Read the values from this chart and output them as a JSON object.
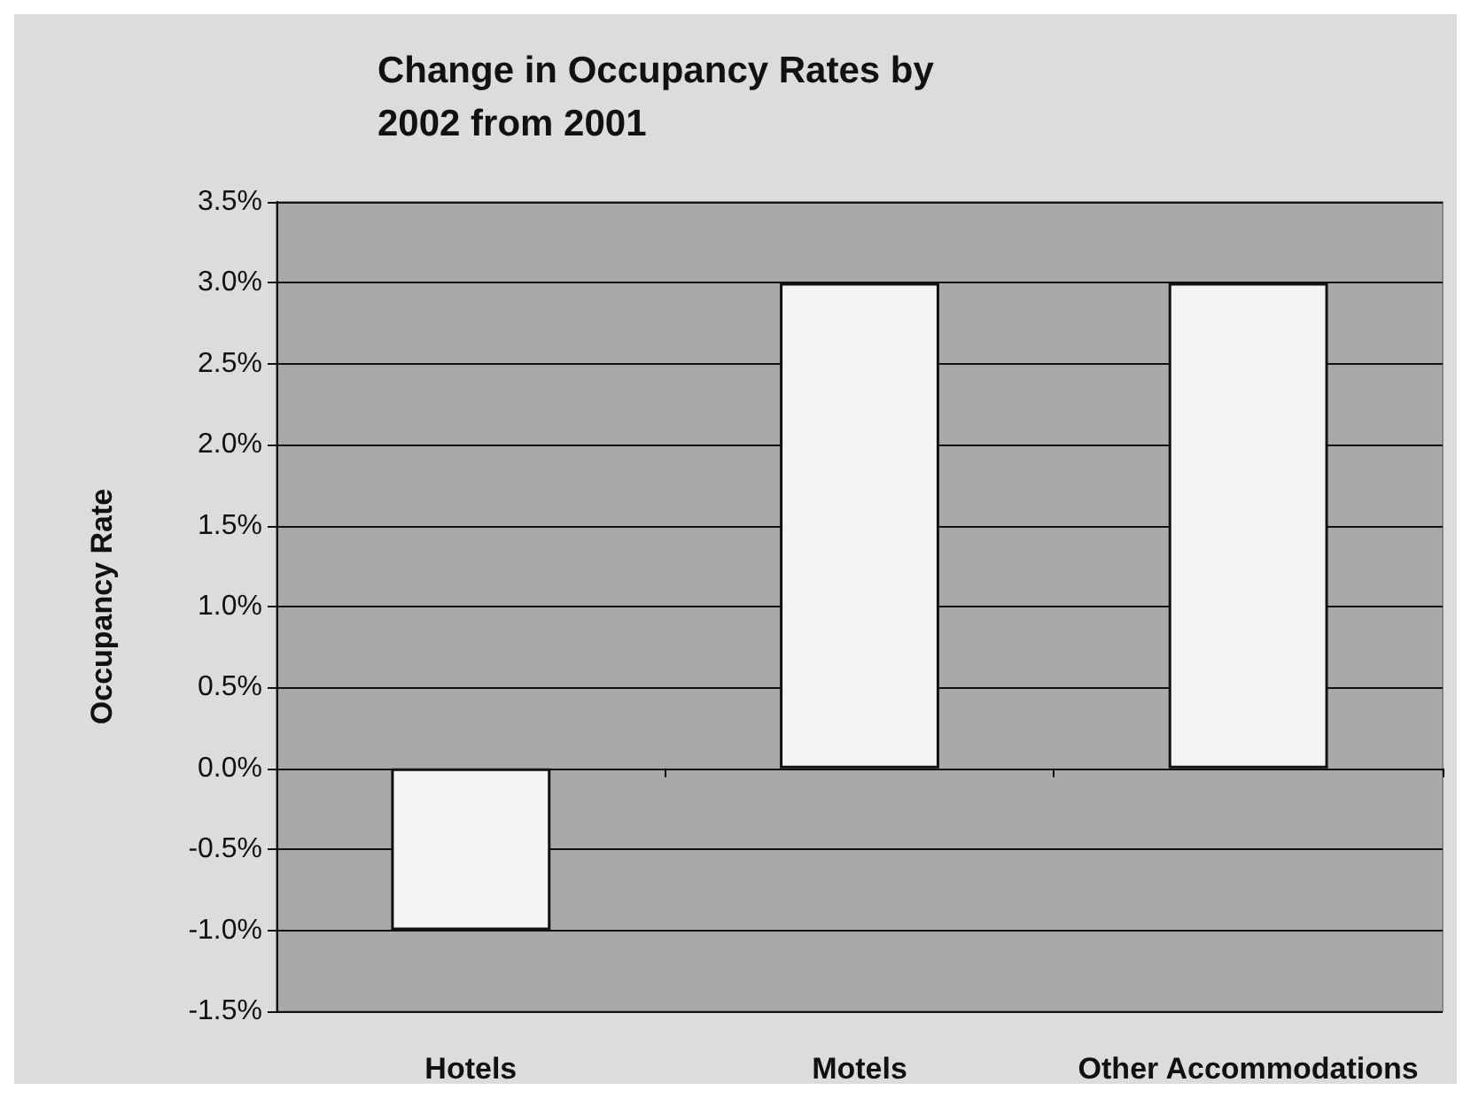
{
  "chart_data": {
    "type": "bar",
    "title": "Change in Occupancy Rates by 2002 from 2001",
    "ylabel": "Occupancy Rate",
    "categories": [
      "Hotels",
      "Motels",
      "Other Accommodations"
    ],
    "values": [
      -1.0,
      3.0,
      3.0
    ],
    "color": "#f4f4f4",
    "ylim": [
      -1.5,
      3.5
    ],
    "yticks": [
      {
        "value": -1.5,
        "label": "-1.5%"
      },
      {
        "value": -1.0,
        "label": "-1.0%"
      },
      {
        "value": -0.5,
        "label": "-0.5%"
      },
      {
        "value": 0,
        "label": "0.0%"
      },
      {
        "value": 0.5,
        "label": "0.5%"
      },
      {
        "value": 1.0,
        "label": "1.0%"
      },
      {
        "value": 1.5,
        "label": "1.5%"
      },
      {
        "value": 2.0,
        "label": "2.0%"
      },
      {
        "value": 2.5,
        "label": "2.5%"
      },
      {
        "value": 3.0,
        "label": "3.0%"
      },
      {
        "value": 3.5,
        "label": "3.5%"
      }
    ],
    "grid": "y"
  }
}
